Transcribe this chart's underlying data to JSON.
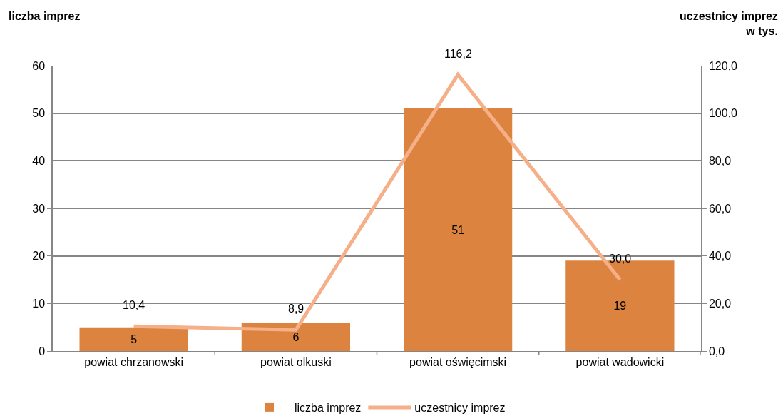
{
  "chart_data": {
    "type": "bar",
    "categories": [
      "powiat chrzanowski",
      "powiat olkuski",
      "powiat oświęcimski",
      "powiat wadowicki"
    ],
    "ylabel": "liczba imprez",
    "y2label": "uczestnicy imprez\nw tys.",
    "series": [
      {
        "name": "liczba imprez",
        "color": "#dc843f",
        "values": [
          5,
          6,
          51,
          19
        ],
        "value_labels": [
          "5",
          "6",
          "51",
          "19"
        ]
      },
      {
        "name": "uczestnicy imprez",
        "type": "line",
        "axis": "y2",
        "color": "#f5b08a",
        "values": [
          10.4,
          8.9,
          116.2,
          30.0
        ],
        "value_labels": [
          "10,4",
          "8,9",
          "116,2",
          "30,0"
        ]
      }
    ],
    "ylim": [
      0,
      60
    ],
    "yticks": [
      0,
      10,
      20,
      30,
      40,
      50,
      60
    ],
    "y2lim": [
      0,
      120
    ],
    "y2ticks": [
      {
        "value": 0,
        "label": "0,0"
      },
      {
        "value": 20,
        "label": "20,0"
      },
      {
        "value": 40,
        "label": "40,0"
      },
      {
        "value": 60,
        "label": "60,0"
      },
      {
        "value": 80,
        "label": "80,0"
      },
      {
        "value": 100,
        "label": "100,0"
      },
      {
        "value": 120,
        "label": "120,0"
      }
    ],
    "grid": "y",
    "legend": "bottom",
    "marker": "none",
    "line_style": "solid"
  }
}
